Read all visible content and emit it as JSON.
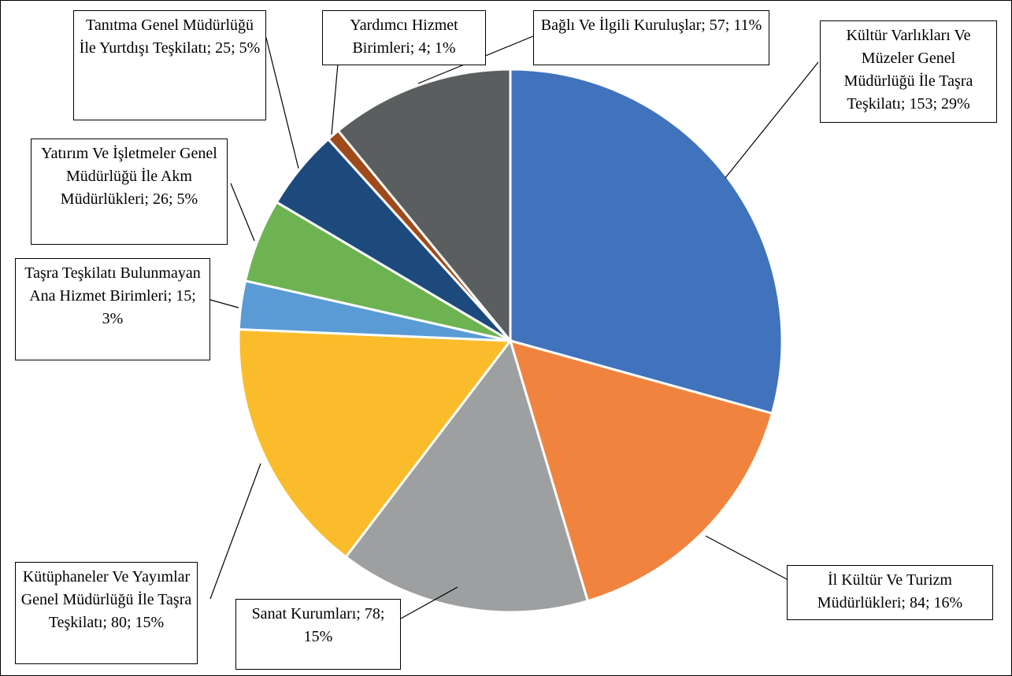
{
  "chart_data": {
    "type": "pie",
    "values": [
      153,
      84,
      78,
      80,
      15,
      26,
      25,
      4,
      57
    ],
    "value_labels": [
      "Kültür Varlıkları Ve Müzeler Genel Müdürlüğü İle Taşra Teşkilatı; 153; 29%",
      "İl Kültür Ve Turizm Müdürlükleri; 84; 16%",
      "Sanat Kurumları; 78; 15%",
      "Kütüphaneler Ve Yayımlar Genel Müdürlüğü İle Taşra Teşkilatı; 80; 15%",
      "Taşra Teşkilatı Bulunmayan Ana Hizmet Birimleri; 15; 3%",
      "Yatırım Ve İşletmeler Genel Müdürlüğü İle Akm Müdürlükleri; 26; 5%",
      "Tanıtma Genel Müdürlüğü İle Yurtdışı Teşkilatı; 25; 5%",
      "Yardımcı Hizmet Birimleri; 4; 1%",
      "Bağlı Ve İlgili Kuruluşlar; 57; 11%"
    ],
    "colors": [
      "#4173bc",
      "#f0843f",
      "#9d9fa0",
      "#fbbc2b",
      "#5a9bd6",
      "#6db352",
      "#1d4a7c",
      "#9e4a1a",
      "#5b5e5f"
    ]
  }
}
